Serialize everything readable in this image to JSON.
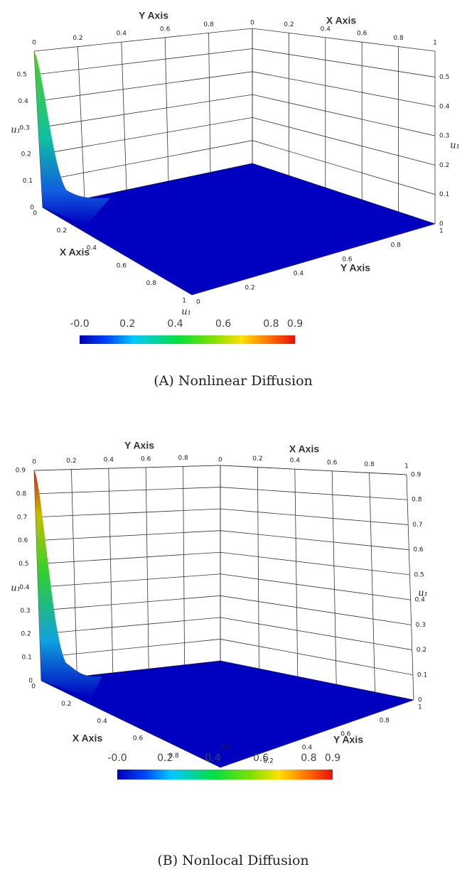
{
  "panels": [
    {
      "axis_titles": {
        "y_top": "Y Axis",
        "x_top": "X Axis",
        "x_bottom": "X Axis",
        "y_bottom": "Y Axis",
        "z_left": "u₁",
        "z_right": "u₁"
      },
      "top_left_ticks": [
        "0",
        "0.2",
        "0.4",
        "0.6",
        "0.8"
      ],
      "top_corner_tick": "0",
      "top_right_ticks": [
        "0.2",
        "0.4",
        "0.6",
        "0.8",
        "1"
      ],
      "left_ticks": [
        "0",
        "0.1",
        "0.2",
        "0.3",
        "0.4",
        "0.5"
      ],
      "right_ticks": [
        "0",
        "0.1",
        "0.2",
        "0.3",
        "0.4",
        "0.5"
      ],
      "bottom_left_ticks": [
        "0",
        "0.2",
        "0.4",
        "0.6",
        "0.8",
        "1"
      ],
      "bottom_right_ticks": [
        "0",
        "0.2",
        "0.4",
        "0.6",
        "0.8",
        "1"
      ],
      "colorbar": {
        "title": "u₁",
        "labels": [
          "-0.0",
          "0.2",
          "0.4",
          "0.6",
          "0.8",
          "0.9"
        ]
      },
      "caption": "(A) Nonlinear Diffusion"
    },
    {
      "axis_titles": {
        "y_top": "Y Axis",
        "x_top": "X Axis",
        "x_bottom": "X Axis",
        "y_bottom": "Y Axis",
        "z_left": "u₁",
        "z_right": "u₁"
      },
      "top_left_ticks": [
        "0",
        "0.2",
        "0.4",
        "0.6",
        "0.8"
      ],
      "top_corner_tick": "0",
      "top_right_ticks": [
        "0.2",
        "0.4",
        "0.6",
        "0.8",
        "1"
      ],
      "left_ticks": [
        "0",
        "0.1",
        "0.2",
        "0.3",
        "0.4",
        "0.5",
        "0.6",
        "0.7",
        "0.8",
        "0.9"
      ],
      "right_ticks": [
        "0",
        "0.1",
        "0.2",
        "0.3",
        "0.4",
        "0.5",
        "0.6",
        "0.7",
        "0.8",
        "0.9"
      ],
      "bottom_left_ticks": [
        "0",
        "0.2",
        "0.4",
        "0.6",
        "0.8",
        "1"
      ],
      "bottom_right_ticks": [
        "0",
        "0.2",
        "0.4",
        "0.6",
        "0.8",
        "1"
      ],
      "colorbar": {
        "title": "u₁",
        "labels": [
          "-0.0",
          "0.2",
          "0.4",
          "0.6",
          "0.8",
          "0.9"
        ]
      },
      "caption": "(B) Nonlocal Diffusion"
    }
  ]
}
